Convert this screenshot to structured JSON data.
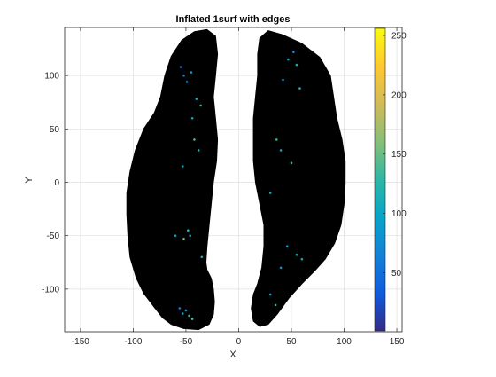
{
  "chart_data": {
    "type": "scatter",
    "title": "Inflated 1surf with edges",
    "xlabel": "X",
    "ylabel": "Y",
    "xlim": [
      -165,
      155
    ],
    "ylim": [
      -140,
      145
    ],
    "xticks": [
      "-150",
      "-100",
      "-50",
      "0",
      "50",
      "100",
      "150"
    ],
    "xtick_values": [
      -150,
      -100,
      -50,
      0,
      50,
      100,
      150
    ],
    "yticks": [
      "100",
      "50",
      "0",
      "-50",
      "-100"
    ],
    "ytick_values": [
      100,
      50,
      0,
      -50,
      -100
    ],
    "grid": true,
    "surface_color": "#000000",
    "hemispheres": [
      {
        "outline": [
          [
            -30,
            143
          ],
          [
            -22,
            137
          ],
          [
            -20,
            120
          ],
          [
            -22,
            100
          ],
          [
            -24,
            80
          ],
          [
            -22,
            60
          ],
          [
            -20,
            40
          ],
          [
            -21,
            20
          ],
          [
            -24,
            0
          ],
          [
            -26,
            -20
          ],
          [
            -28,
            -40
          ],
          [
            -30,
            -60
          ],
          [
            -31,
            -75
          ],
          [
            -30,
            -82
          ],
          [
            -26,
            -90
          ],
          [
            -24,
            -100
          ],
          [
            -23,
            -112
          ],
          [
            -24,
            -124
          ],
          [
            -28,
            -133
          ],
          [
            -38,
            -138
          ],
          [
            -52,
            -137
          ],
          [
            -64,
            -133
          ],
          [
            -72,
            -127
          ],
          [
            -80,
            -117
          ],
          [
            -90,
            -104
          ],
          [
            -97,
            -90
          ],
          [
            -103,
            -70
          ],
          [
            -105,
            -50
          ],
          [
            -106,
            -30
          ],
          [
            -106,
            -10
          ],
          [
            -103,
            10
          ],
          [
            -98,
            30
          ],
          [
            -90,
            50
          ],
          [
            -80,
            65
          ],
          [
            -74,
            80
          ],
          [
            -70,
            100
          ],
          [
            -64,
            118
          ],
          [
            -54,
            133
          ],
          [
            -42,
            141
          ],
          [
            -30,
            143
          ]
        ]
      },
      {
        "outline": [
          [
            28,
            142
          ],
          [
            42,
            138
          ],
          [
            60,
            130
          ],
          [
            77,
            117
          ],
          [
            87,
            100
          ],
          [
            90,
            80
          ],
          [
            93,
            60
          ],
          [
            98,
            40
          ],
          [
            101,
            20
          ],
          [
            101,
            0
          ],
          [
            100,
            -20
          ],
          [
            97,
            -40
          ],
          [
            91,
            -57
          ],
          [
            82,
            -72
          ],
          [
            72,
            -83
          ],
          [
            60,
            -95
          ],
          [
            48,
            -108
          ],
          [
            37,
            -123
          ],
          [
            28,
            -133
          ],
          [
            20,
            -135
          ],
          [
            14,
            -130
          ],
          [
            12,
            -118
          ],
          [
            14,
            -105
          ],
          [
            18,
            -95
          ],
          [
            22,
            -80
          ],
          [
            24,
            -60
          ],
          [
            24,
            -40
          ],
          [
            20,
            -20
          ],
          [
            16,
            0
          ],
          [
            14,
            20
          ],
          [
            14,
            40
          ],
          [
            14,
            60
          ],
          [
            16,
            80
          ],
          [
            18,
            100
          ],
          [
            18,
            120
          ],
          [
            20,
            135
          ],
          [
            28,
            142
          ]
        ]
      }
    ],
    "colored_vertices": [
      {
        "x": -52,
        "y": 100,
        "value": 60
      },
      {
        "x": -49,
        "y": 94,
        "value": 75
      },
      {
        "x": -55,
        "y": 108,
        "value": 55
      },
      {
        "x": -45,
        "y": 103,
        "value": 90
      },
      {
        "x": -40,
        "y": 78,
        "value": 110
      },
      {
        "x": -36,
        "y": 72,
        "value": 130
      },
      {
        "x": -44,
        "y": 60,
        "value": 100
      },
      {
        "x": -42,
        "y": 40,
        "value": 140
      },
      {
        "x": -38,
        "y": 30,
        "value": 120
      },
      {
        "x": -53,
        "y": 15,
        "value": 95
      },
      {
        "x": -48,
        "y": -45,
        "value": 120
      },
      {
        "x": -52,
        "y": -53,
        "value": 150
      },
      {
        "x": -46,
        "y": -50,
        "value": 100
      },
      {
        "x": -60,
        "y": -50,
        "value": 90
      },
      {
        "x": -35,
        "y": -70,
        "value": 110
      },
      {
        "x": -50,
        "y": -120,
        "value": 80
      },
      {
        "x": -53,
        "y": -123,
        "value": 100
      },
      {
        "x": -47,
        "y": -125,
        "value": 120
      },
      {
        "x": -56,
        "y": -118,
        "value": 60
      },
      {
        "x": -44,
        "y": -128,
        "value": 140
      },
      {
        "x": 52,
        "y": 122,
        "value": 70
      },
      {
        "x": 47,
        "y": 115,
        "value": 90
      },
      {
        "x": 55,
        "y": 110,
        "value": 110
      },
      {
        "x": 42,
        "y": 96,
        "value": 80
      },
      {
        "x": 58,
        "y": 88,
        "value": 120
      },
      {
        "x": 36,
        "y": 40,
        "value": 130
      },
      {
        "x": 40,
        "y": 30,
        "value": 100
      },
      {
        "x": 50,
        "y": 18,
        "value": 140
      },
      {
        "x": 30,
        "y": -10,
        "value": 110
      },
      {
        "x": 46,
        "y": -60,
        "value": 90
      },
      {
        "x": 55,
        "y": -68,
        "value": 120
      },
      {
        "x": 60,
        "y": -72,
        "value": 100
      },
      {
        "x": 40,
        "y": -80,
        "value": 80
      },
      {
        "x": 30,
        "y": -105,
        "value": 95
      },
      {
        "x": 35,
        "y": -115,
        "value": 130
      }
    ],
    "colorbar": {
      "colormap": "parula",
      "range": [
        1,
        256
      ],
      "ticks": [
        "250",
        "200",
        "150",
        "100",
        "50"
      ],
      "tick_values": [
        250,
        200,
        150,
        100,
        50
      ],
      "colors": [
        "#352a87",
        "#0f5cdd",
        "#1481d6",
        "#06a4ca",
        "#2eb7a4",
        "#87bf77",
        "#d1bb59",
        "#fec832",
        "#f9fb0e"
      ]
    }
  }
}
